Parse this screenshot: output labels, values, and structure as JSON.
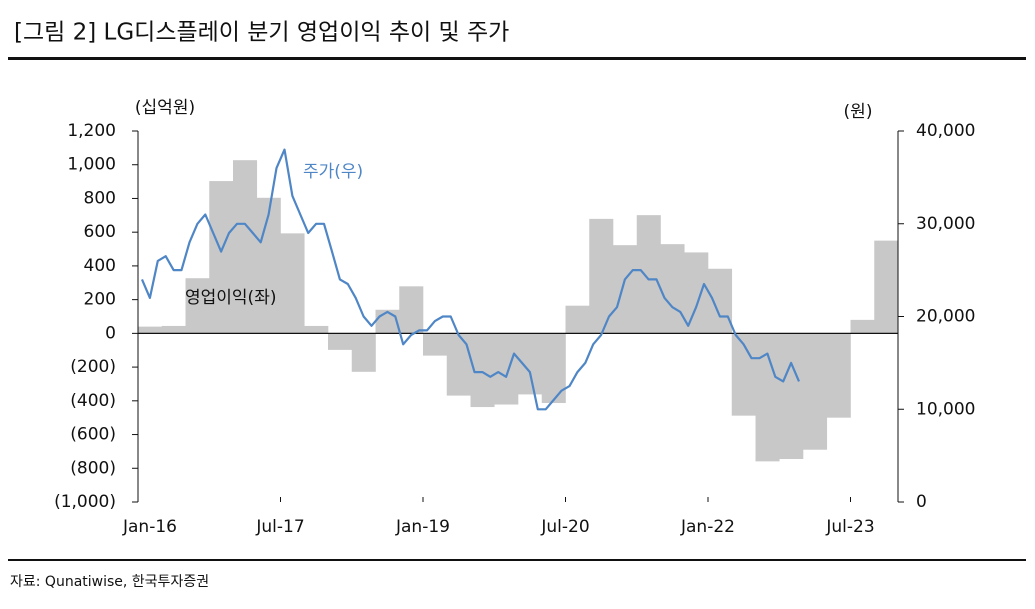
{
  "chart_data": {
    "type": "bar",
    "title": "[그림 2] LG디스플레이 분기 영업이익 추이 및 주가",
    "source": "자료: Qunatiwise, 한국투자증권",
    "y_label": "(십억원)",
    "y2_label": "(원)",
    "xlim": [
      "2016-01",
      "2024-01"
    ],
    "xticks": [
      {
        "value": "2016-01",
        "label": "Jan-16"
      },
      {
        "value": "2017-07",
        "label": "Jul-17"
      },
      {
        "value": "2019-01",
        "label": "Jan-19"
      },
      {
        "value": "2020-07",
        "label": "Jul-20"
      },
      {
        "value": "2022-01",
        "label": "Jan-22"
      },
      {
        "value": "2023-07",
        "label": "Jul-23"
      }
    ],
    "ylim": [
      -1000,
      1200
    ],
    "yticks": [
      {
        "value": -1000,
        "label": "(1,000)"
      },
      {
        "value": -800,
        "label": "(800)"
      },
      {
        "value": -600,
        "label": "(600)"
      },
      {
        "value": -400,
        "label": "(400)"
      },
      {
        "value": -200,
        "label": "(200)"
      },
      0,
      200,
      400,
      600,
      800,
      {
        "value": 1000,
        "label": "1,000"
      },
      {
        "value": 1200,
        "label": "1,200"
      }
    ],
    "y2lim": [
      0,
      40000
    ],
    "y2ticks": [
      0,
      {
        "value": 10000,
        "label": "10,000"
      },
      {
        "value": 20000,
        "label": "20,000"
      },
      {
        "value": 30000,
        "label": "30,000"
      },
      {
        "value": 40000,
        "label": "40,000"
      }
    ],
    "series": [
      {
        "name": "영업이익(좌)",
        "type": "bar",
        "color": "#c8c8c8",
        "x": [
          "2016-01",
          "2016-04",
          "2016-07",
          "2016-10",
          "2017-01",
          "2017-04",
          "2017-07",
          "2017-10",
          "2018-01",
          "2018-04",
          "2018-07",
          "2018-10",
          "2019-01",
          "2019-04",
          "2019-07",
          "2019-10",
          "2020-01",
          "2020-04",
          "2020-07",
          "2020-10",
          "2021-01",
          "2021-04",
          "2021-07",
          "2021-10",
          "2022-01",
          "2022-04",
          "2022-07",
          "2022-10",
          "2023-01",
          "2023-04",
          "2023-07",
          "2023-10"
        ],
        "values": [
          40,
          44,
          327,
          903,
          1027,
          804,
          593,
          44,
          -98,
          -228,
          140,
          279,
          -132,
          -369,
          -437,
          -422,
          -362,
          -413,
          164,
          679,
          523,
          701,
          529,
          480,
          383,
          -488,
          -759,
          -745,
          -690,
          -500,
          80,
          550
        ]
      },
      {
        "name": "주가(우)",
        "type": "line",
        "axis": "y2",
        "color": "#4f86c6",
        "x": [
          "2016-01",
          "2016-02",
          "2016-03",
          "2016-04",
          "2016-05",
          "2016-06",
          "2016-07",
          "2016-08",
          "2016-09",
          "2016-10",
          "2016-11",
          "2016-12",
          "2017-01",
          "2017-02",
          "2017-03",
          "2017-04",
          "2017-05",
          "2017-06",
          "2017-07",
          "2017-08",
          "2017-09",
          "2017-10",
          "2017-11",
          "2017-12",
          "2018-01",
          "2018-02",
          "2018-03",
          "2018-04",
          "2018-05",
          "2018-06",
          "2018-07",
          "2018-08",
          "2018-09",
          "2018-10",
          "2018-11",
          "2018-12",
          "2019-01",
          "2019-02",
          "2019-03",
          "2019-04",
          "2019-05",
          "2019-06",
          "2019-07",
          "2019-08",
          "2019-09",
          "2019-10",
          "2019-11",
          "2019-12",
          "2020-01",
          "2020-02",
          "2020-03",
          "2020-04",
          "2020-05",
          "2020-06",
          "2020-07",
          "2020-08",
          "2020-09",
          "2020-10",
          "2020-11",
          "2020-12",
          "2021-01",
          "2021-02",
          "2021-03",
          "2021-04",
          "2021-05",
          "2021-06",
          "2021-07",
          "2021-08",
          "2021-09",
          "2021-10",
          "2021-11",
          "2021-12",
          "2022-01",
          "2022-02",
          "2022-03",
          "2022-04",
          "2022-05",
          "2022-06",
          "2022-07",
          "2022-08",
          "2022-09",
          "2022-10",
          "2022-11",
          "2022-12"
        ],
        "values": [
          24000,
          22000,
          26000,
          26500,
          25000,
          25000,
          28000,
          30000,
          31000,
          29000,
          27000,
          29000,
          30000,
          30000,
          29000,
          28000,
          31000,
          36000,
          38000,
          33000,
          31000,
          29000,
          30000,
          30000,
          27000,
          24000,
          23500,
          22000,
          20000,
          19000,
          20000,
          20500,
          20000,
          17000,
          18000,
          18500,
          18500,
          19500,
          20000,
          20000,
          18000,
          17000,
          14000,
          14000,
          13500,
          14000,
          13500,
          16000,
          15000,
          14000,
          10000,
          10000,
          11000,
          12000,
          12500,
          14000,
          15000,
          17000,
          18000,
          20000,
          21000,
          24000,
          25000,
          25000,
          24000,
          24000,
          22000,
          21000,
          20500,
          19000,
          21000,
          23500,
          22000,
          20000,
          20000,
          18000,
          17000,
          15500,
          15500,
          16000,
          13500,
          13000,
          15000,
          13000
        ]
      }
    ]
  }
}
